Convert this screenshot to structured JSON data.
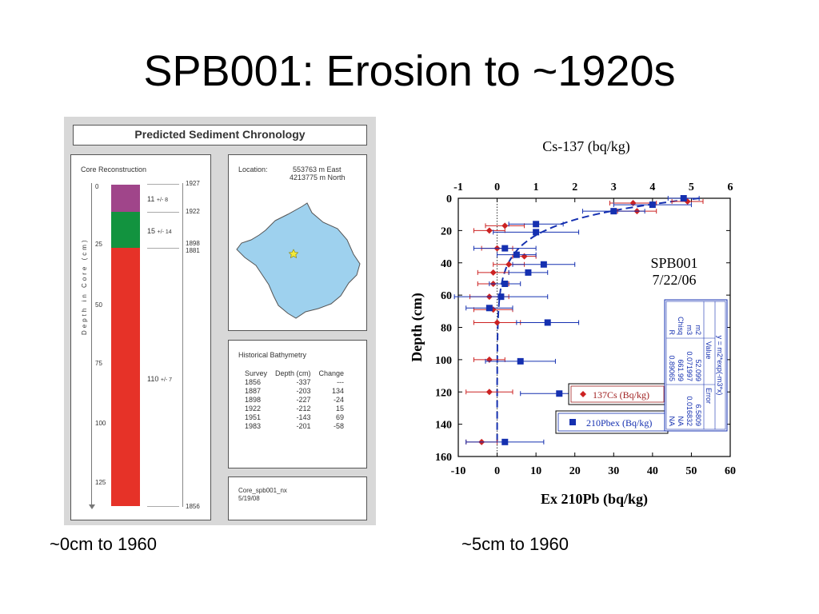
{
  "slide": {
    "title": "SPB001: Erosion to ~1920s",
    "caption_left": "~0cm to 1960",
    "caption_right": "~5cm to 1960"
  },
  "chronology": {
    "title": "Predicted Sediment Chronology",
    "core_label": "Core Reconstruction",
    "depth_axis_label": "Depth in Core (cm)",
    "depth_ticks": [
      "0",
      "25",
      "50",
      "75",
      "100",
      "125"
    ],
    "year_labels": [
      "1927",
      "1922",
      "1898",
      "1881",
      "1856"
    ],
    "segments": [
      {
        "years": "11",
        "err": "+/- 8",
        "color": "#a0458a"
      },
      {
        "years": "15",
        "err": "+/- 14",
        "color": "#12933f"
      },
      {
        "years": "110",
        "err": "+/- 7",
        "color": "#e63228"
      }
    ],
    "location": {
      "label": "Location:",
      "east": "553763 m East",
      "north": "4213775 m North"
    },
    "bathymetry": {
      "title": "Historical Bathymetry",
      "headers": [
        "Survey",
        "Depth (cm)",
        "Change"
      ],
      "rows": [
        [
          "1856",
          "-337",
          "---"
        ],
        [
          "1887",
          "-203",
          "134"
        ],
        [
          "1898",
          "-227",
          "-24"
        ],
        [
          "1922",
          "-212",
          "15"
        ],
        [
          "1951",
          "-143",
          "69"
        ],
        [
          "1983",
          "-201",
          "-58"
        ]
      ]
    },
    "file": {
      "name": "Core_spb001_nx",
      "date": "5/19/08"
    }
  },
  "chart_data": {
    "type": "scatter",
    "title": "Cs-137 (bq/kg)",
    "xlabel": "Ex 210Pb (bq/kg)",
    "ylabel": "Depth (cm)",
    "x_bottom_ticks": [
      "-10",
      "0",
      "10",
      "20",
      "30",
      "40",
      "50",
      "60"
    ],
    "x_top_ticks": [
      "-1",
      "0",
      "1",
      "2",
      "3",
      "4",
      "5",
      "6"
    ],
    "y_ticks": [
      "0",
      "20",
      "40",
      "60",
      "80",
      "100",
      "120",
      "140",
      "160"
    ],
    "xlim_bottom": [
      -10,
      60
    ],
    "xlim_top": [
      -1,
      6
    ],
    "ylim": [
      160,
      0
    ],
    "annotation": {
      "line1": "SPB001",
      "line2": "7/22/06"
    },
    "series": [
      {
        "name": "137Cs (Bq/kg)",
        "axis": "top",
        "marker": "diamond",
        "color": "#cc2222",
        "points": [
          {
            "x": 4.9,
            "y": 2,
            "err": 0.4
          },
          {
            "x": 3.5,
            "y": 3,
            "err": 0.6
          },
          {
            "x": 3.6,
            "y": 8,
            "err": 0.5
          },
          {
            "x": 0.2,
            "y": 17,
            "err": 0.5
          },
          {
            "x": -0.2,
            "y": 20,
            "err": 0.4
          },
          {
            "x": 0.0,
            "y": 31,
            "err": 0.4
          },
          {
            "x": 0.7,
            "y": 36,
            "err": 0.3
          },
          {
            "x": 0.3,
            "y": 41,
            "err": 0.4
          },
          {
            "x": -0.1,
            "y": 46,
            "err": 0.4
          },
          {
            "x": -0.1,
            "y": 53,
            "err": 0.4
          },
          {
            "x": -0.2,
            "y": 61,
            "err": 0.5
          },
          {
            "x": -0.1,
            "y": 69,
            "err": 0.5
          },
          {
            "x": 0.0,
            "y": 77,
            "err": 0.6
          },
          {
            "x": -0.2,
            "y": 100,
            "err": 0.4
          },
          {
            "x": -0.2,
            "y": 120,
            "err": 0.6
          },
          {
            "x": -0.4,
            "y": 151,
            "err": 0.4
          }
        ]
      },
      {
        "name": "210Pbex (Bq/kg)",
        "axis": "bottom",
        "marker": "square",
        "color": "#1530b0",
        "points": [
          {
            "x": 48,
            "y": 0,
            "err": 4
          },
          {
            "x": 40,
            "y": 4,
            "err": 10
          },
          {
            "x": 30,
            "y": 8,
            "err": 8
          },
          {
            "x": 10,
            "y": 16,
            "err": 7
          },
          {
            "x": 10,
            "y": 21,
            "err": 11
          },
          {
            "x": 2,
            "y": 31,
            "err": 8
          },
          {
            "x": 5,
            "y": 35,
            "err": 5
          },
          {
            "x": 12,
            "y": 41,
            "err": 8
          },
          {
            "x": 8,
            "y": 46,
            "err": 5
          },
          {
            "x": 2,
            "y": 53,
            "err": 4
          },
          {
            "x": 1,
            "y": 61,
            "err": 12
          },
          {
            "x": -2,
            "y": 68,
            "err": 6
          },
          {
            "x": 13,
            "y": 77,
            "err": 8
          },
          {
            "x": 6,
            "y": 101,
            "err": 9
          },
          {
            "x": 16,
            "y": 121,
            "err": 10
          },
          {
            "x": 2,
            "y": 151,
            "err": 10
          }
        ]
      }
    ],
    "fit_table": {
      "equation": "y = m2*exp(-m3*x)",
      "headers": [
        "",
        "Value",
        "Error"
      ],
      "rows": [
        [
          "m2",
          "52.099",
          "6.5809"
        ],
        [
          "m3",
          "0.071997",
          "0.016832"
        ],
        [
          "Chisq",
          "661.99",
          "NA"
        ],
        [
          "R",
          "0.89065",
          "NA"
        ]
      ]
    }
  }
}
